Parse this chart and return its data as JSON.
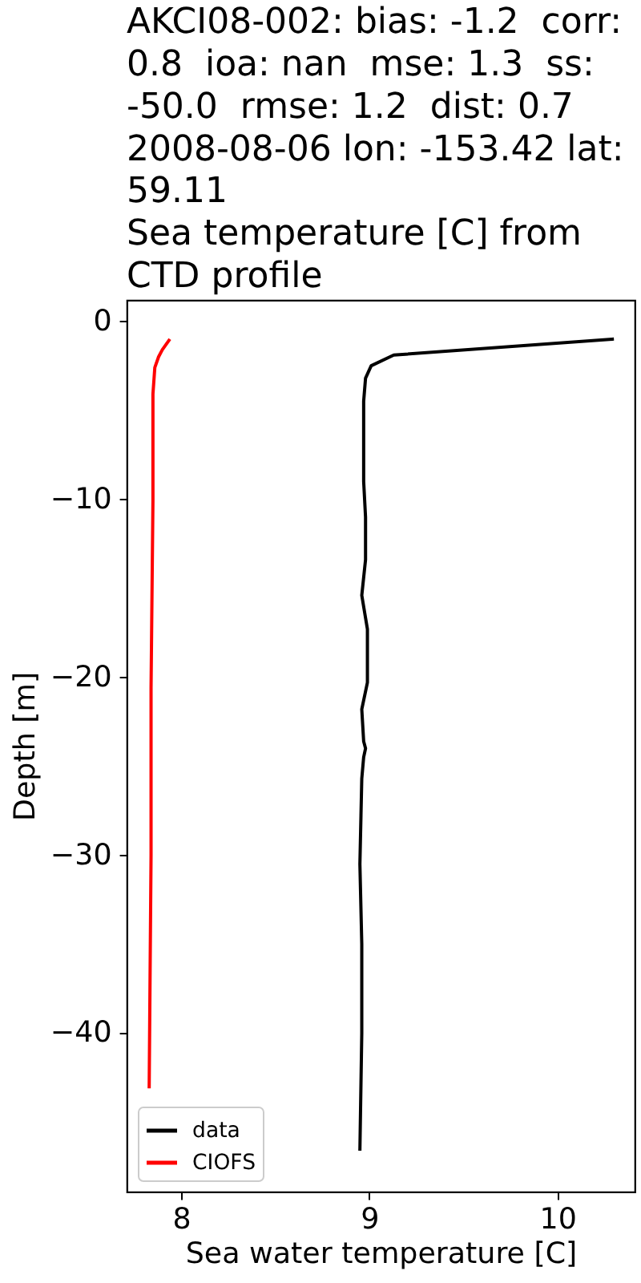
{
  "chart_data": {
    "type": "line",
    "title": "AKCI08-002: bias: -1.2  corr:\n0.8  ioa: nan  mse: 1.3  ss:\n-50.0  rmse: 1.2  dist: 0.7\n2008-08-06 lon: -153.42 lat:\n59.11\nSea temperature [C] from\nCTD profile",
    "xlabel": "Sea water temperature [C]",
    "ylabel": "Depth [m]",
    "xlim": [
      7.71,
      10.41
    ],
    "ylim": [
      -48.9,
      1.2
    ],
    "xticks": [
      8,
      9,
      10
    ],
    "yticks": [
      0,
      -10,
      -20,
      -30,
      -40
    ],
    "legend": "bottom left",
    "series": [
      {
        "name": "data",
        "color": "#000000",
        "x": [
          10.3,
          9.13,
          9.01,
          8.98,
          8.97,
          8.97,
          8.97,
          8.98,
          8.98,
          8.96,
          8.99,
          8.99,
          8.96,
          8.97,
          8.98,
          8.97,
          8.96,
          8.95,
          8.96,
          8.96,
          8.95
        ],
        "values": [
          -1.0,
          -1.9,
          -2.5,
          -3.2,
          -4.5,
          -6.5,
          -9.0,
          -11.0,
          -13.4,
          -15.4,
          -17.3,
          -20.3,
          -21.8,
          -23.6,
          -24.0,
          -24.5,
          -25.7,
          -30.5,
          -35.0,
          -40.0,
          -46.6
        ]
      },
      {
        "name": "CIOFS",
        "color": "#ff0000",
        "x": [
          7.94,
          7.9,
          7.88,
          7.86,
          7.85,
          7.85,
          7.85,
          7.84,
          7.84,
          7.83
        ],
        "values": [
          -1.0,
          -1.6,
          -2.0,
          -2.6,
          -4.1,
          -7.0,
          -10.1,
          -20.6,
          -30.0,
          -43.1
        ]
      }
    ]
  }
}
